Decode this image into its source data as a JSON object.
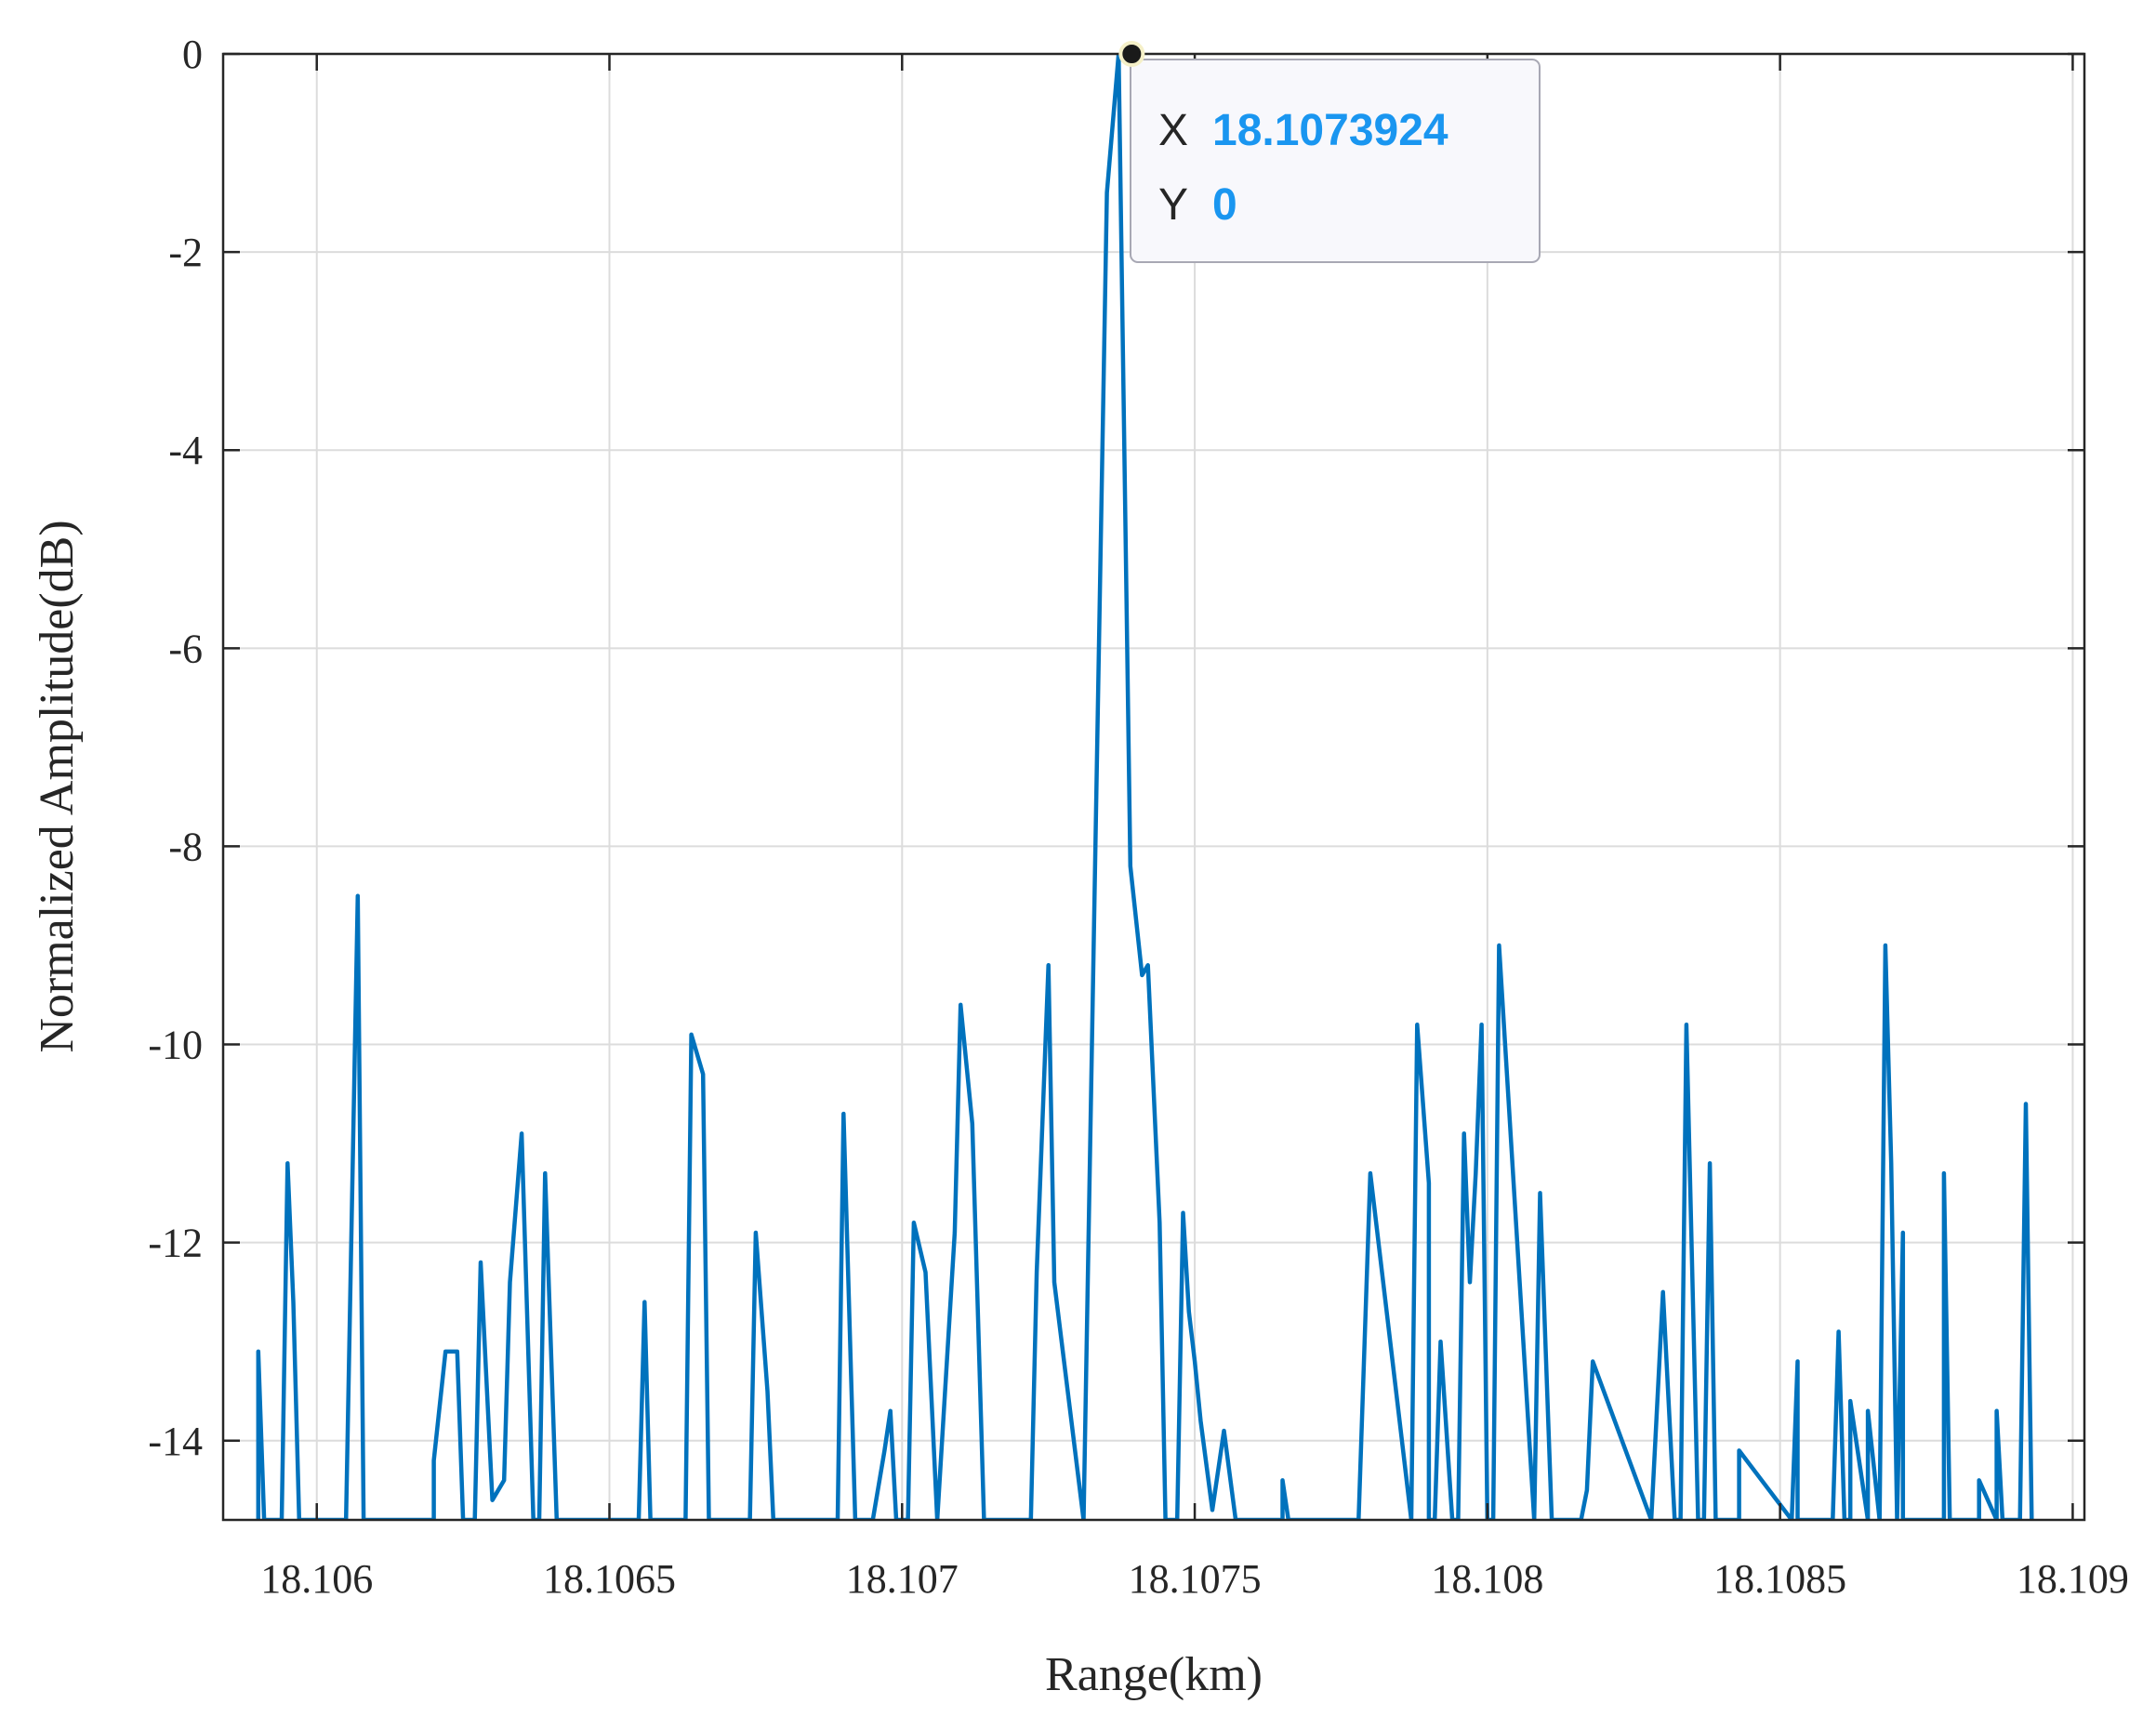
{
  "chart_data": {
    "type": "line",
    "title": "",
    "xlabel": "Range(km)",
    "ylabel": "Normalized Amplitude(dB)",
    "xlim": [
      18.10584,
      18.10902
    ],
    "ylim": [
      -14.8,
      0
    ],
    "xticks": [
      18.106,
      18.1065,
      18.107,
      18.1075,
      18.108,
      18.1085,
      18.109
    ],
    "xtick_labels": [
      "18.106",
      "18.1065",
      "18.107",
      "18.1075",
      "18.108",
      "18.1085",
      "18.109"
    ],
    "yticks": [
      0,
      -2,
      -4,
      -6,
      -8,
      -10,
      -12,
      -14
    ],
    "ytick_labels": [
      "0",
      "-2",
      "-4",
      "-6",
      "-8",
      "-10",
      "-12",
      "-14"
    ],
    "grid": true,
    "line_color": "#0072bd",
    "series": [
      {
        "x": [
          18.1059,
          18.1059,
          18.10591,
          18.10594,
          18.10595,
          18.10596,
          18.10597,
          18.10598,
          18.10605,
          18.10607,
          18.10608,
          18.10609,
          18.1062,
          18.1062,
          18.10622,
          18.10623,
          18.10624,
          18.10625,
          18.10627,
          18.10628,
          18.1063,
          18.10632,
          18.10633,
          18.10635,
          18.10637,
          18.10638,
          18.10639,
          18.10641,
          18.10642,
          18.10655,
          18.10656,
          18.10657,
          18.10663,
          18.10664,
          18.10666,
          18.10667,
          18.10674,
          18.10675,
          18.10677,
          18.10678,
          18.10689,
          18.1069,
          18.10692,
          18.10695,
          18.10697,
          18.10698,
          18.10699,
          18.10701,
          18.10702,
          18.10704,
          18.10706,
          18.10709,
          18.1071,
          18.10712,
          18.10714,
          18.10722,
          18.10723,
          18.10725,
          18.10726,
          18.10731,
          18.10735,
          18.10737,
          18.10739,
          18.10741,
          18.10742,
          18.10744,
          18.10745,
          18.10747,
          18.10748,
          18.10749,
          18.1075,
          18.10751,
          18.10753,
          18.10755,
          18.10757,
          18.10758,
          18.10759,
          18.1076,
          18.10765,
          18.10765,
          18.10766,
          18.10777,
          18.10778,
          18.1078,
          18.10787,
          18.10788,
          18.1079,
          18.1079,
          18.10791,
          18.10792,
          18.10794,
          18.10795,
          18.10796,
          18.10797,
          18.10798,
          18.10799,
          18.108,
          18.10801,
          18.10802,
          18.10808,
          18.10809,
          18.10811,
          18.10816,
          18.10817,
          18.10818,
          18.10828,
          18.1083,
          18.10832,
          18.10833,
          18.10834,
          18.10836,
          18.10837,
          18.10838,
          18.10839,
          18.10843,
          18.10843,
          18.10852,
          18.10853,
          18.10853,
          18.10859,
          18.1086,
          18.10861,
          18.10862,
          18.10862,
          18.10865,
          18.10865,
          18.10867,
          18.10868,
          18.10869,
          18.1087,
          18.10871,
          18.10871,
          18.10878,
          18.10878,
          18.10879,
          18.10884,
          18.10884,
          18.10887,
          18.10887,
          18.10888,
          18.10891,
          18.10892,
          18.10893
        ],
        "y": [
          -14.8,
          -13.1,
          -14.8,
          -14.8,
          -11.2,
          -12.6,
          -14.8,
          -14.8,
          -14.8,
          -8.5,
          -14.8,
          -14.8,
          -14.8,
          -14.2,
          -13.1,
          -13.1,
          -13.1,
          -14.8,
          -14.8,
          -12.2,
          -14.6,
          -14.4,
          -12.4,
          -10.9,
          -14.8,
          -14.8,
          -11.3,
          -14.8,
          -14.8,
          -14.8,
          -12.6,
          -14.8,
          -14.8,
          -9.9,
          -10.3,
          -14.8,
          -14.8,
          -11.9,
          -13.5,
          -14.8,
          -14.8,
          -10.7,
          -14.8,
          -14.8,
          -14.1,
          -13.7,
          -14.8,
          -14.8,
          -11.8,
          -12.3,
          -14.8,
          -11.9,
          -9.6,
          -10.8,
          -14.8,
          -14.8,
          -12.3,
          -9.2,
          -12.4,
          -14.8,
          -1.4,
          0,
          -8.2,
          -9.3,
          -9.2,
          -11.8,
          -14.8,
          -14.8,
          -11.7,
          -12.7,
          -13.2,
          -13.8,
          -14.7,
          -13.9,
          -14.8,
          -14.8,
          -14.8,
          -14.8,
          -14.8,
          -14.4,
          -14.8,
          -14.8,
          -14.8,
          -11.3,
          -14.8,
          -9.8,
          -11.4,
          -14.8,
          -14.8,
          -13.0,
          -14.8,
          -14.8,
          -10.9,
          -12.4,
          -11.3,
          -9.8,
          -14.8,
          -14.8,
          -9.0,
          -14.8,
          -11.5,
          -14.8,
          -14.8,
          -14.5,
          -13.2,
          -14.8,
          -12.5,
          -14.8,
          -14.8,
          -9.8,
          -14.8,
          -14.8,
          -11.2,
          -14.8,
          -14.8,
          -14.1,
          -14.8,
          -13.2,
          -14.8,
          -14.8,
          -12.9,
          -14.8,
          -14.8,
          -13.6,
          -14.8,
          -13.7,
          -14.8,
          -9.0,
          -11.2,
          -14.8,
          -11.9,
          -14.8,
          -14.8,
          -11.3,
          -14.8,
          -14.8,
          -14.4,
          -14.8,
          -13.7,
          -14.8,
          -14.8,
          -10.6,
          -14.8
        ]
      }
    ],
    "datatip": {
      "x_key": "X",
      "x_value": "18.1073924",
      "y_key": "Y",
      "y_value": "0",
      "point": [
        18.1073924,
        0
      ]
    }
  }
}
